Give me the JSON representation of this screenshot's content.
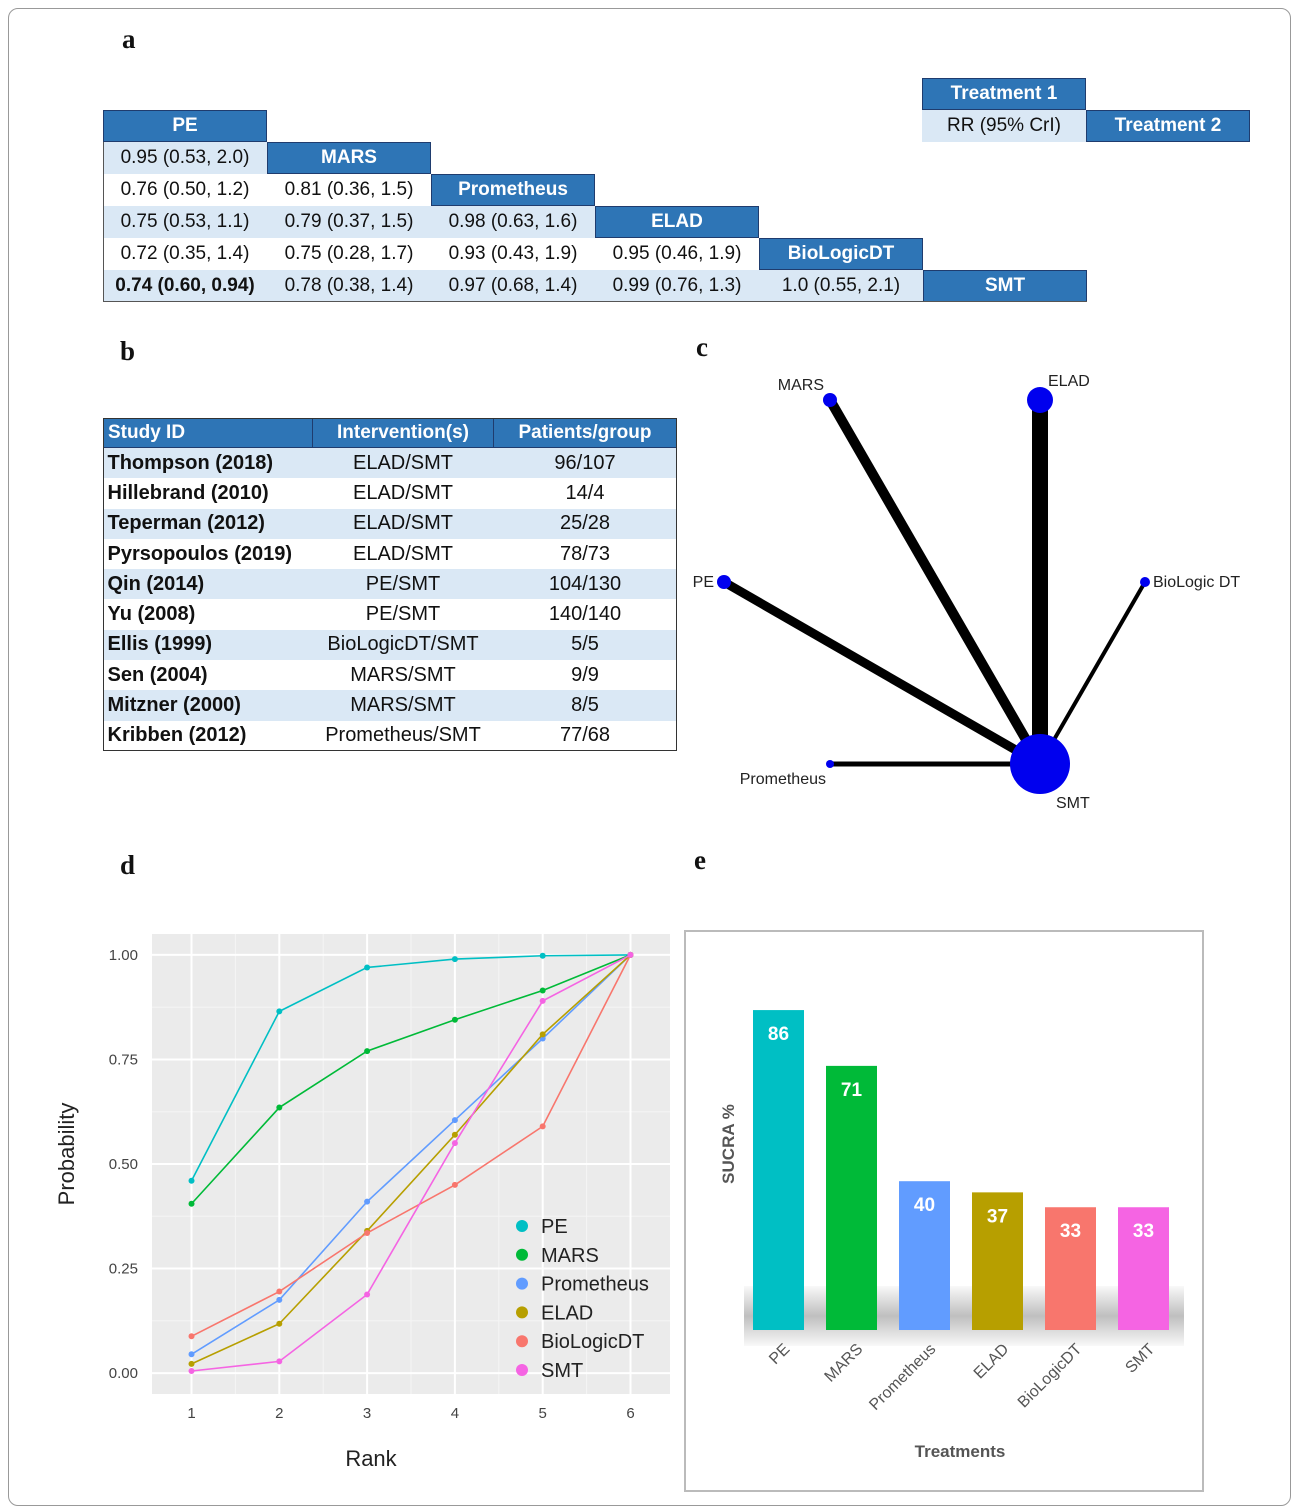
{
  "panels": {
    "a": "a",
    "b": "b",
    "c": "c",
    "d": "d",
    "e": "e"
  },
  "league": {
    "legend": {
      "t1": "Treatment 1",
      "rr": "RR (95% CrI)",
      "t2": "Treatment 2"
    },
    "treatments": [
      "PE",
      "MARS",
      "Prometheus",
      "ELAD",
      "BioLogicDT",
      "SMT"
    ],
    "rows": [
      [
        "0.95 (0.53, 2.0)"
      ],
      [
        "0.76 (0.50, 1.2)",
        "0.81 (0.36, 1.5)"
      ],
      [
        "0.75 (0.53, 1.1)",
        "0.79 (0.37, 1.5)",
        "0.98 (0.63, 1.6)"
      ],
      [
        "0.72 (0.35, 1.4)",
        "0.75 (0.28, 1.7)",
        "0.93 (0.43, 1.9)",
        "0.95 (0.46, 1.9)"
      ],
      [
        "0.74 (0.60, 0.94)",
        "0.78 (0.38, 1.4)",
        "0.97 (0.68, 1.4)",
        "0.99 (0.76, 1.3)",
        "1.0 (0.55, 2.1)"
      ]
    ]
  },
  "studies": {
    "headers": [
      "Study ID",
      "Intervention(s)",
      "Patients/group"
    ],
    "rows": [
      [
        "Thompson (2018)",
        "ELAD/SMT",
        "96/107"
      ],
      [
        "Hillebrand (2010)",
        "ELAD/SMT",
        "14/4"
      ],
      [
        "Teperman (2012)",
        "ELAD/SMT",
        "25/28"
      ],
      [
        "Pyrsopoulos (2019)",
        "ELAD/SMT",
        "78/73"
      ],
      [
        "Qin (2014)",
        "PE/SMT",
        "104/130"
      ],
      [
        "Yu (2008)",
        "PE/SMT",
        "140/140"
      ],
      [
        "Ellis (1999)",
        "BioLogicDT/SMT",
        "5/5"
      ],
      [
        "Sen (2004)",
        "MARS/SMT",
        "9/9"
      ],
      [
        "Mitzner (2000)",
        "MARS/SMT",
        "8/5"
      ],
      [
        "Kribben (2012)",
        "Prometheus/SMT",
        "77/68"
      ]
    ]
  },
  "network": {
    "nodes": [
      "MARS",
      "ELAD",
      "PE",
      "BioLogic DT",
      "Prometheus",
      "SMT"
    ],
    "edges": [
      [
        "MARS",
        "SMT"
      ],
      [
        "ELAD",
        "SMT"
      ],
      [
        "PE",
        "SMT"
      ],
      [
        "BioLogic DT",
        "SMT"
      ],
      [
        "Prometheus",
        "SMT"
      ]
    ]
  },
  "chart_data": [
    {
      "type": "line",
      "xlabel": "Rank",
      "ylabel": "Probability",
      "x": [
        1,
        2,
        3,
        4,
        5,
        6
      ],
      "ylim": [
        0,
        1
      ],
      "yticks": [
        "0.00",
        "0.25",
        "0.50",
        "0.75",
        "1.00"
      ],
      "grid": true,
      "legend_position": "bottom-right",
      "series": [
        {
          "name": "PE",
          "color": "#00bfc4",
          "values": [
            0.46,
            0.865,
            0.97,
            0.99,
            0.998,
            1.0
          ]
        },
        {
          "name": "MARS",
          "color": "#00ba38",
          "values": [
            0.405,
            0.635,
            0.77,
            0.845,
            0.915,
            1.0
          ]
        },
        {
          "name": "Prometheus",
          "color": "#619cff",
          "values": [
            0.045,
            0.175,
            0.41,
            0.605,
            0.8,
            1.0
          ]
        },
        {
          "name": "ELAD",
          "color": "#b79f00",
          "values": [
            0.022,
            0.118,
            0.34,
            0.57,
            0.81,
            1.0
          ]
        },
        {
          "name": "BioLogicDT",
          "color": "#f8766d",
          "values": [
            0.088,
            0.195,
            0.335,
            0.45,
            0.59,
            1.0
          ]
        },
        {
          "name": "SMT",
          "color": "#f564e3",
          "values": [
            0.005,
            0.028,
            0.188,
            0.55,
            0.89,
            1.0
          ]
        }
      ]
    },
    {
      "type": "bar",
      "xlabel": "Treatments",
      "ylabel": "SUCRA %",
      "categories": [
        "PE",
        "MARS",
        "Prometheus",
        "ELAD",
        "BioLogicDT",
        "SMT"
      ],
      "values": [
        86,
        71,
        40,
        37,
        33,
        33
      ],
      "colors": [
        "#00bfc4",
        "#00ba38",
        "#619cff",
        "#b79f00",
        "#f8766d",
        "#f564e3"
      ]
    }
  ]
}
